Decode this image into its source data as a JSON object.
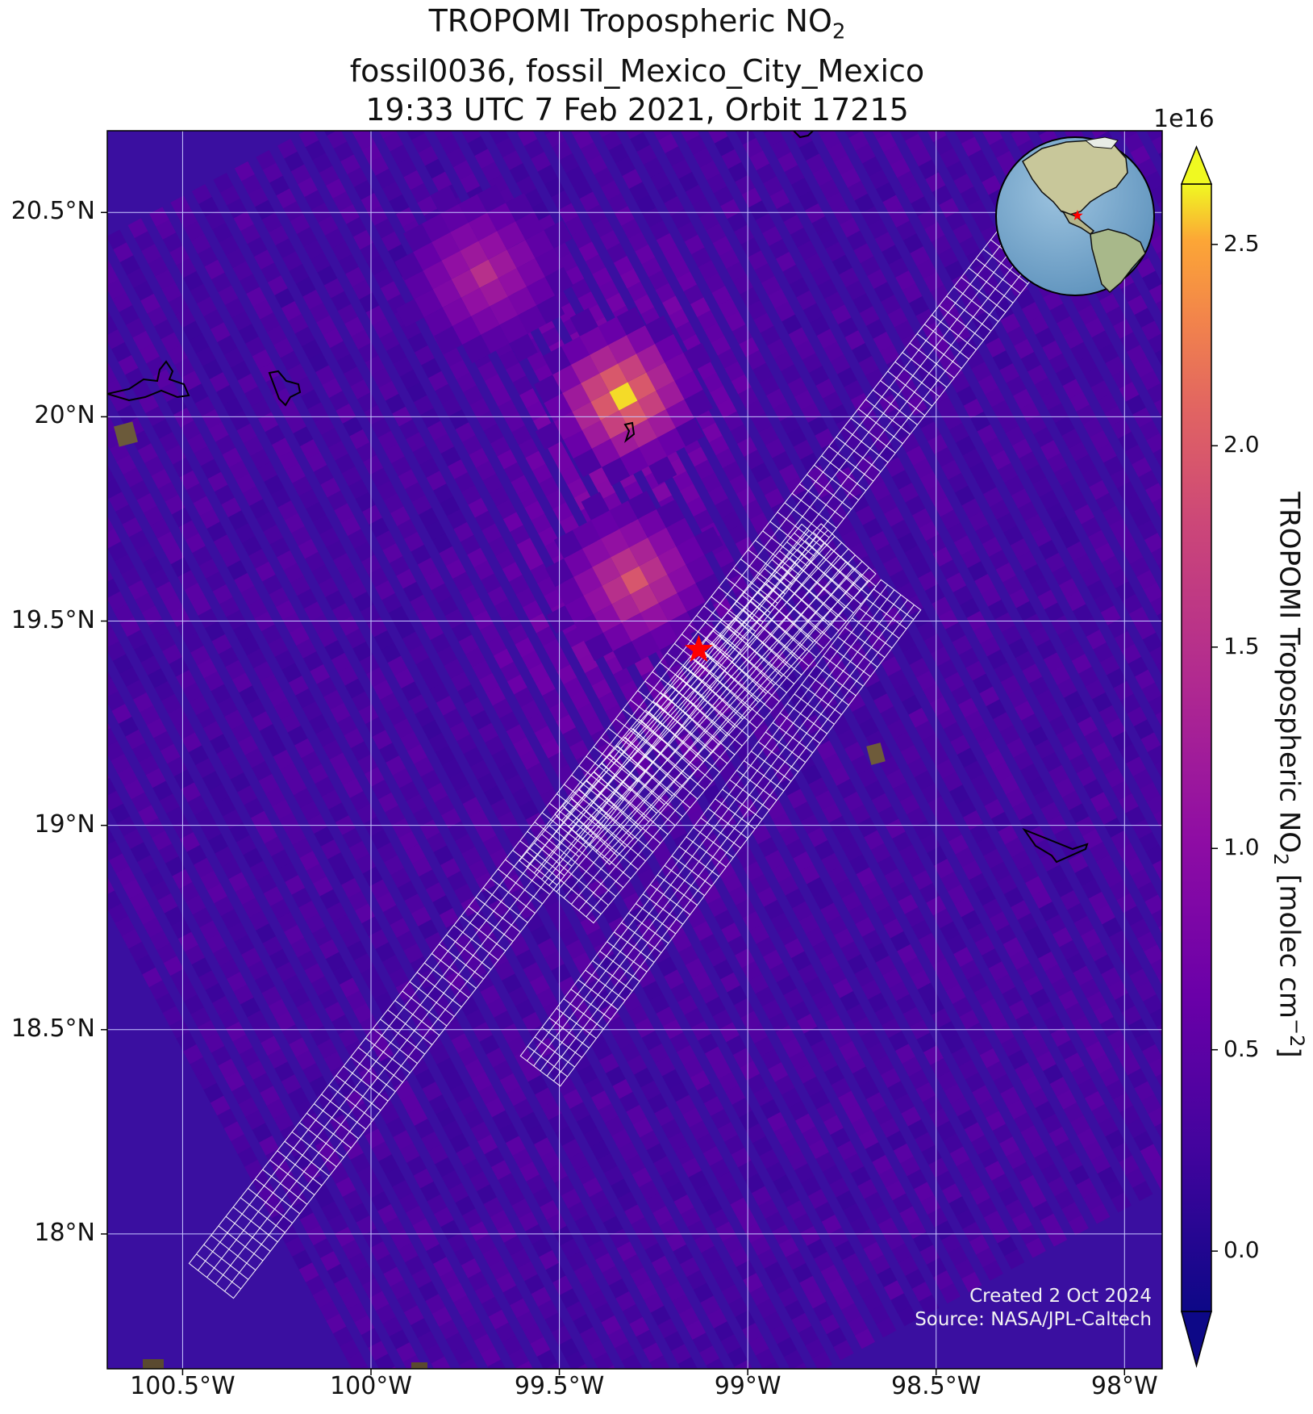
{
  "title": {
    "line1_main": "TROPOMI Tropospheric NO",
    "line1_sub": "2",
    "line2": "fossil0036, fossil_Mexico_City_Mexico",
    "line3": "19:33 UTC 7 Feb 2021, Orbit 17215"
  },
  "map": {
    "lat_labels": [
      "20.5°N",
      "20°N",
      "19.5°N",
      "19°N",
      "18.5°N",
      "18°N"
    ],
    "lon_labels": [
      "100.5°W",
      "100°W",
      "99.5°W",
      "99°W",
      "98.5°W",
      "98°W"
    ],
    "lat_values": [
      20.5,
      20.0,
      19.5,
      19.0,
      18.5,
      18.0
    ],
    "lon_values": [
      -100.5,
      -100.0,
      -99.5,
      -99.0,
      -98.5,
      -98.0
    ],
    "extent": {
      "lon": [
        -100.7,
        -97.9
      ],
      "lat": [
        17.67,
        20.7
      ]
    },
    "target": {
      "name": "fossil_Mexico_City_Mexico",
      "lon": -99.13,
      "lat": 19.43,
      "marker": "red-star"
    },
    "hotspots": [
      {
        "lon": -99.33,
        "lat": 20.05,
        "value": 2.6
      },
      {
        "lon": -99.3,
        "lat": 19.6,
        "value": 1.95
      },
      {
        "lon": -99.7,
        "lat": 20.35,
        "value": 1.5
      }
    ],
    "credit_line1": "Created 2 Oct 2024",
    "credit_line2": "Source: NASA/JPL-Caltech"
  },
  "colorbar": {
    "exponent": "1e16",
    "label_main": "TROPOMI Tropospheric NO",
    "label_sub": "2",
    "label_unit": " [molec cm",
    "label_sup": "−2",
    "label_end": "]",
    "ticks": [
      "0.0",
      "0.5",
      "1.0",
      "1.5",
      "2.0",
      "2.5"
    ],
    "tick_values": [
      0.0,
      0.5,
      1.0,
      1.5,
      2.0,
      2.5
    ],
    "range": [
      -0.15,
      2.65
    ],
    "colormap": "plasma",
    "extend": "both"
  },
  "colors": {
    "background_low": "#3a0fa0",
    "grid": "#c8c8ff",
    "target_star": "#ff0000",
    "footprint_grid": "#ffffff"
  }
}
